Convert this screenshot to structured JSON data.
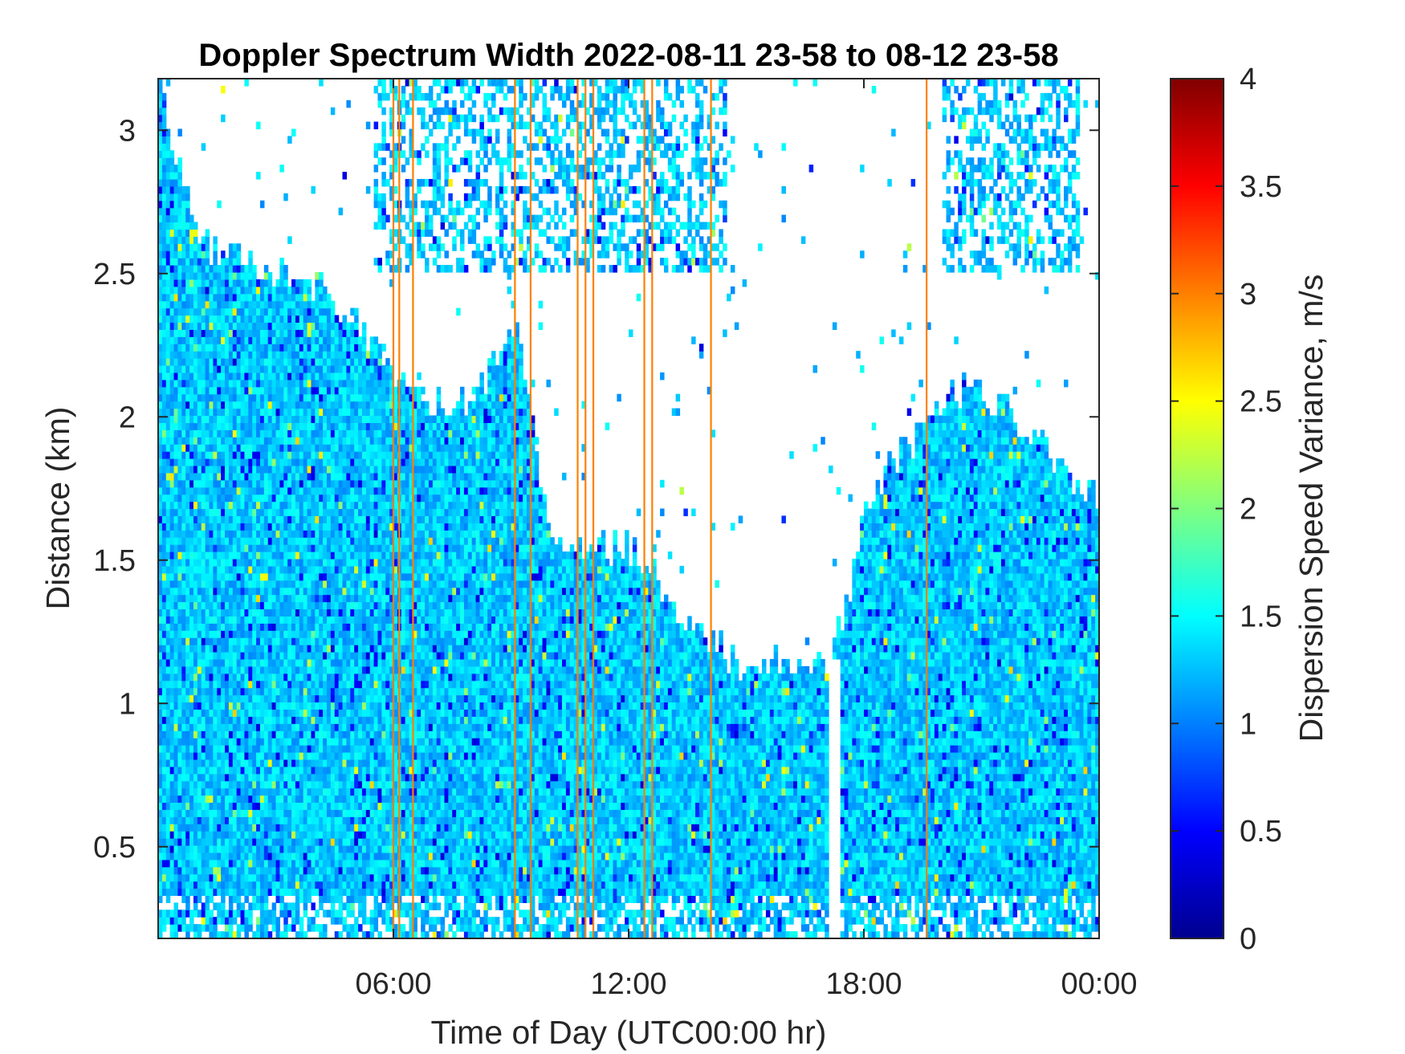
{
  "chart_data": {
    "type": "heatmap",
    "title": "Doppler Spectrum Width 2022-08-11 23-58 to 08-12 23-58",
    "xlabel": "Time of Day (UTC00:00 hr)",
    "ylabel": "Distance (km)",
    "colorbar_label": "Dispersion Speed Variance, m/s",
    "x_unit": "hours",
    "xlim": [
      0,
      24
    ],
    "ylim": [
      0.18,
      3.18
    ],
    "clim": [
      0,
      4
    ],
    "colormap": "jet",
    "x_ticks": [
      {
        "value": 6,
        "label": "06:00"
      },
      {
        "value": 12,
        "label": "12:00"
      },
      {
        "value": 18,
        "label": "18:00"
      },
      {
        "value": 24,
        "label": "00:00"
      }
    ],
    "y_ticks": [
      {
        "value": 0.5,
        "label": "0.5"
      },
      {
        "value": 1,
        "label": "1"
      },
      {
        "value": 1.5,
        "label": "1.5"
      },
      {
        "value": 2,
        "label": "2"
      },
      {
        "value": 2.5,
        "label": "2.5"
      },
      {
        "value": 3,
        "label": "3"
      }
    ],
    "colorbar_ticks": [
      {
        "value": 0,
        "label": "0"
      },
      {
        "value": 0.5,
        "label": "0.5"
      },
      {
        "value": 1,
        "label": "1"
      },
      {
        "value": 1.5,
        "label": "1.5"
      },
      {
        "value": 2,
        "label": "2"
      },
      {
        "value": 2.5,
        "label": "2.5"
      },
      {
        "value": 3,
        "label": "3"
      },
      {
        "value": 3.5,
        "label": "3.5"
      },
      {
        "value": 4,
        "label": "4"
      }
    ],
    "typical_value": 1.3,
    "echo_top_km": [
      [
        0,
        3.18
      ],
      [
        1,
        2.6
      ],
      [
        2,
        2.55
      ],
      [
        3,
        2.5
      ],
      [
        4,
        2.45
      ],
      [
        5,
        2.35
      ],
      [
        5.8,
        2.2
      ],
      [
        6.3,
        2.1
      ],
      [
        7,
        2.05
      ],
      [
        8,
        2.05
      ],
      [
        8.6,
        2.2
      ],
      [
        9.2,
        2.35
      ],
      [
        10,
        1.55
      ],
      [
        11,
        1.55
      ],
      [
        12,
        1.55
      ],
      [
        12.7,
        1.45
      ],
      [
        13.4,
        1.3
      ],
      [
        14,
        1.25
      ],
      [
        15,
        1.1
      ],
      [
        15.8,
        1.15
      ],
      [
        16.4,
        1.15
      ],
      [
        17,
        1.15
      ],
      [
        17.5,
        1.3
      ],
      [
        18,
        1.65
      ],
      [
        18.7,
        1.85
      ],
      [
        19.5,
        1.95
      ],
      [
        20.5,
        2.1
      ],
      [
        21.5,
        2.05
      ],
      [
        22.5,
        1.9
      ],
      [
        23.5,
        1.75
      ],
      [
        24,
        1.7
      ]
    ],
    "upper_layer_periods_hours": [
      [
        5.5,
        14.5
      ],
      [
        20,
        23.5
      ]
    ],
    "gap_column_hours": [
      17.15,
      17.35
    ],
    "high_value_columns_hours": [
      6.0,
      6.15,
      6.5,
      9.1,
      9.5,
      10.7,
      10.9,
      11.1,
      12.4,
      12.6,
      14.1,
      19.6
    ],
    "high_value_column_value": 3.0
  }
}
